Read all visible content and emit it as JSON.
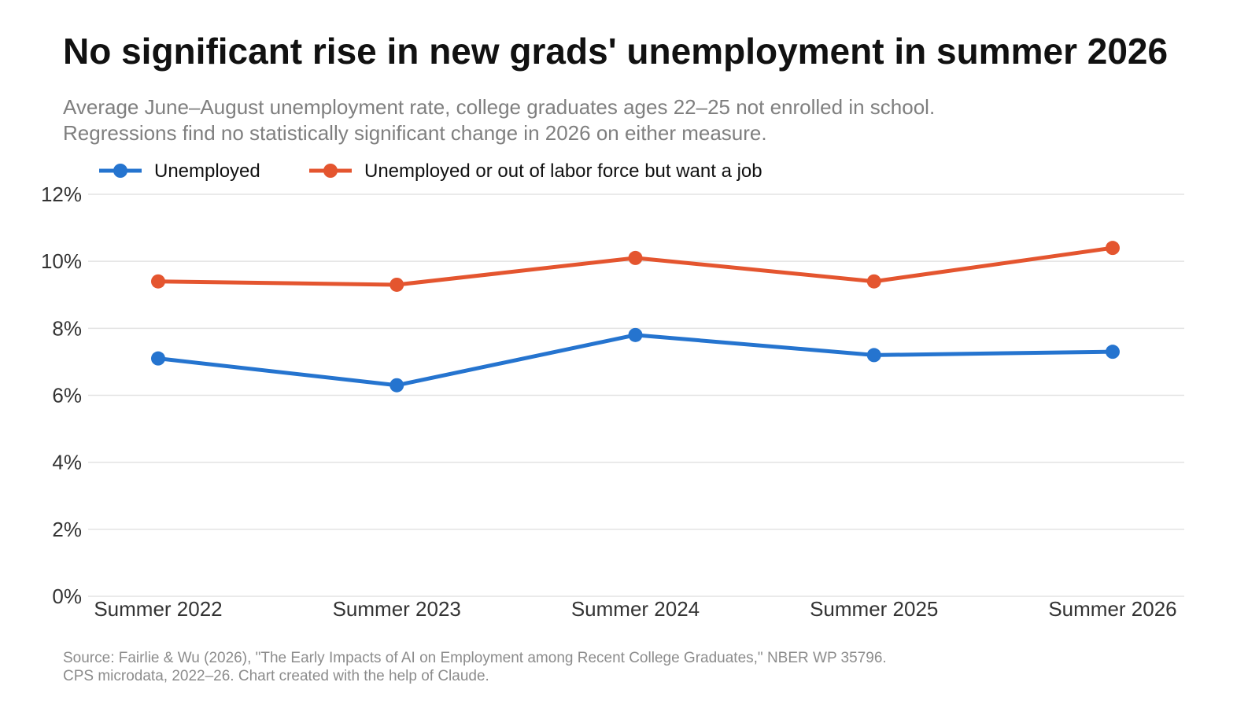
{
  "title": "No significant rise in new grads' unemployment in summer 2026",
  "subtitle": [
    "Average June–August unemployment rate, college graduates ages 22–25 not enrolled in school.",
    "Regressions find no statistically significant change in 2026 on either measure."
  ],
  "source": [
    "Source: Fairlie & Wu (2026), \"The Early Impacts of AI on Employment among Recent College Graduates,\" NBER WP 35796.",
    "CPS microdata, 2022–26. Chart created with the help of Claude."
  ],
  "chart_data": {
    "type": "line",
    "categories": [
      "Summer 2022",
      "Summer 2023",
      "Summer 2024",
      "Summer 2025",
      "Summer 2026"
    ],
    "series": [
      {
        "name": "Unemployed",
        "color": "#2574cf",
        "values": [
          7.1,
          6.3,
          7.8,
          7.2,
          7.3
        ]
      },
      {
        "name": "Unemployed or out of labor force but want a job",
        "color": "#e4552f",
        "values": [
          9.4,
          9.3,
          10.1,
          9.4,
          10.4
        ]
      }
    ],
    "ylim": [
      0,
      12
    ],
    "yticks": [
      0,
      2,
      4,
      6,
      8,
      10,
      12
    ],
    "ytick_labels": [
      "0%",
      "2%",
      "4%",
      "6%",
      "8%",
      "10%",
      "12%"
    ],
    "grid": "horizontal",
    "legend_position": "top-left",
    "xlabel": "",
    "ylabel": ""
  }
}
